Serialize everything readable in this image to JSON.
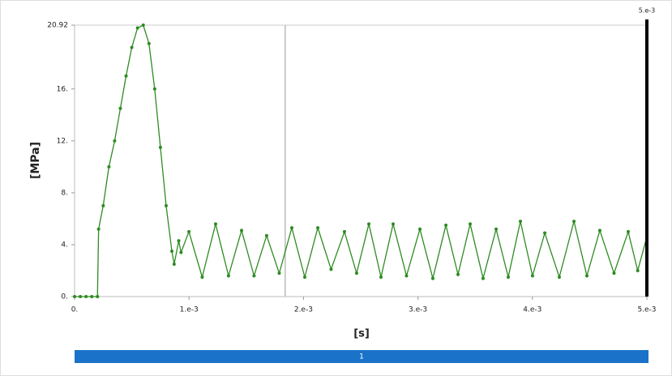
{
  "chart_data": {
    "type": "line",
    "ylabel": "[MPa]",
    "xlabel": "[s]",
    "x": [
      0,
      5e-05,
      0.0001,
      0.00015,
      0.0002,
      0.00021,
      0.00025,
      0.0003,
      0.00035,
      0.0004,
      0.00045,
      0.0005,
      0.00055,
      0.0006,
      0.00065,
      0.0007,
      0.00075,
      0.0008,
      0.00085,
      0.00087,
      0.00091,
      0.00093,
      0.000999,
      0.001115,
      0.001232,
      0.001345,
      0.001459,
      0.001568,
      0.001678,
      0.001788,
      0.001898,
      0.002011,
      0.002125,
      0.002241,
      0.002358,
      0.002464,
      0.002571,
      0.002677,
      0.002783,
      0.0029,
      0.003017,
      0.00313,
      0.003244,
      0.00335,
      0.003456,
      0.003569,
      0.003683,
      0.003789,
      0.003895,
      0.004001,
      0.004108,
      0.004235,
      0.004363,
      0.004476,
      0.004589,
      0.004713,
      0.004837,
      0.00492,
      0.005
    ],
    "series": [
      {
        "name": "1",
        "color": "#2e8b22",
        "values": [
          0,
          0,
          0,
          0,
          0,
          5.2,
          7,
          10,
          12,
          14.5,
          17,
          19.2,
          20.7,
          20.92,
          19.5,
          16,
          11.5,
          7,
          3.5,
          2.5,
          4.3,
          3.4,
          5.0,
          1.5,
          5.6,
          1.6,
          5.1,
          1.6,
          4.7,
          1.8,
          5.3,
          1.5,
          5.3,
          2.1,
          5.0,
          1.8,
          5.6,
          1.5,
          5.6,
          1.6,
          5.2,
          1.4,
          5.5,
          1.7,
          5.6,
          1.4,
          5.2,
          1.5,
          5.8,
          1.6,
          4.9,
          1.5,
          5.8,
          1.6,
          5.1,
          1.8,
          5.0,
          2.0,
          4.6
        ]
      }
    ],
    "xlim": [
      0,
      0.005
    ],
    "ylim": [
      0,
      20.92
    ],
    "xticks": [
      {
        "value": 0,
        "label": "0."
      },
      {
        "value": 0.001,
        "label": "1.e-3"
      },
      {
        "value": 0.002,
        "label": "2.e-3"
      },
      {
        "value": 0.003,
        "label": "3.e-3"
      },
      {
        "value": 0.004,
        "label": "4.e-3"
      },
      {
        "value": 0.005,
        "label": "5.e-3"
      }
    ],
    "yticks": [
      {
        "value": 0,
        "label": "0."
      },
      {
        "value": 4,
        "label": "4."
      },
      {
        "value": 8,
        "label": "8."
      },
      {
        "value": 12,
        "label": "12."
      },
      {
        "value": 16,
        "label": "16."
      },
      20.92
    ],
    "cursor_x": 0.00184,
    "marker": {
      "value": 0.005,
      "label": "5.e-3"
    },
    "step_bar_label": "1"
  }
}
